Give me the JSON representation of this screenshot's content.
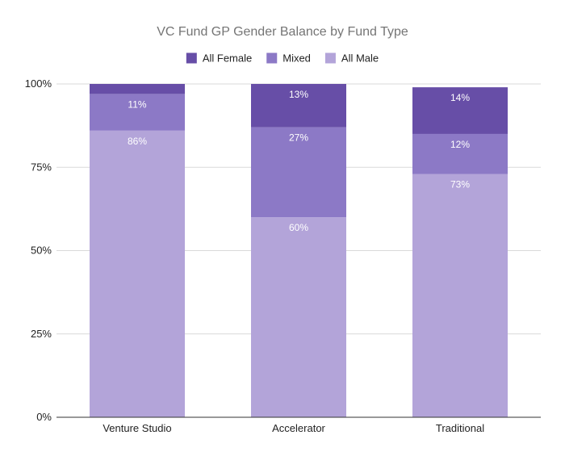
{
  "chart_data": {
    "type": "bar",
    "stacked": true,
    "title": "VC Fund GP Gender Balance by Fund Type",
    "categories": [
      "Venture Studio",
      "Accelerator",
      "Traditional"
    ],
    "series": [
      {
        "name": "All Male",
        "values": [
          86,
          60,
          73
        ],
        "labels": [
          "86%",
          "60%",
          "73%"
        ],
        "color": "#b3a4d9"
      },
      {
        "name": "Mixed",
        "values": [
          11,
          27,
          12
        ],
        "labels": [
          "11%",
          "27%",
          "12%"
        ],
        "color": "#8c79c6"
      },
      {
        "name": "All Female",
        "values": [
          3,
          13,
          14
        ],
        "labels": [
          "",
          "13%",
          "14%"
        ],
        "color": "#674ea7"
      }
    ],
    "legend_order": [
      "All Female",
      "Mixed",
      "All Male"
    ],
    "legend_position": "top",
    "ylim": [
      0,
      100
    ],
    "yticks": [
      0,
      25,
      50,
      75,
      100
    ],
    "ytick_labels": [
      "0%",
      "25%",
      "50%",
      "75%",
      "100%"
    ],
    "grid": true,
    "xlabel": "",
    "ylabel": ""
  }
}
